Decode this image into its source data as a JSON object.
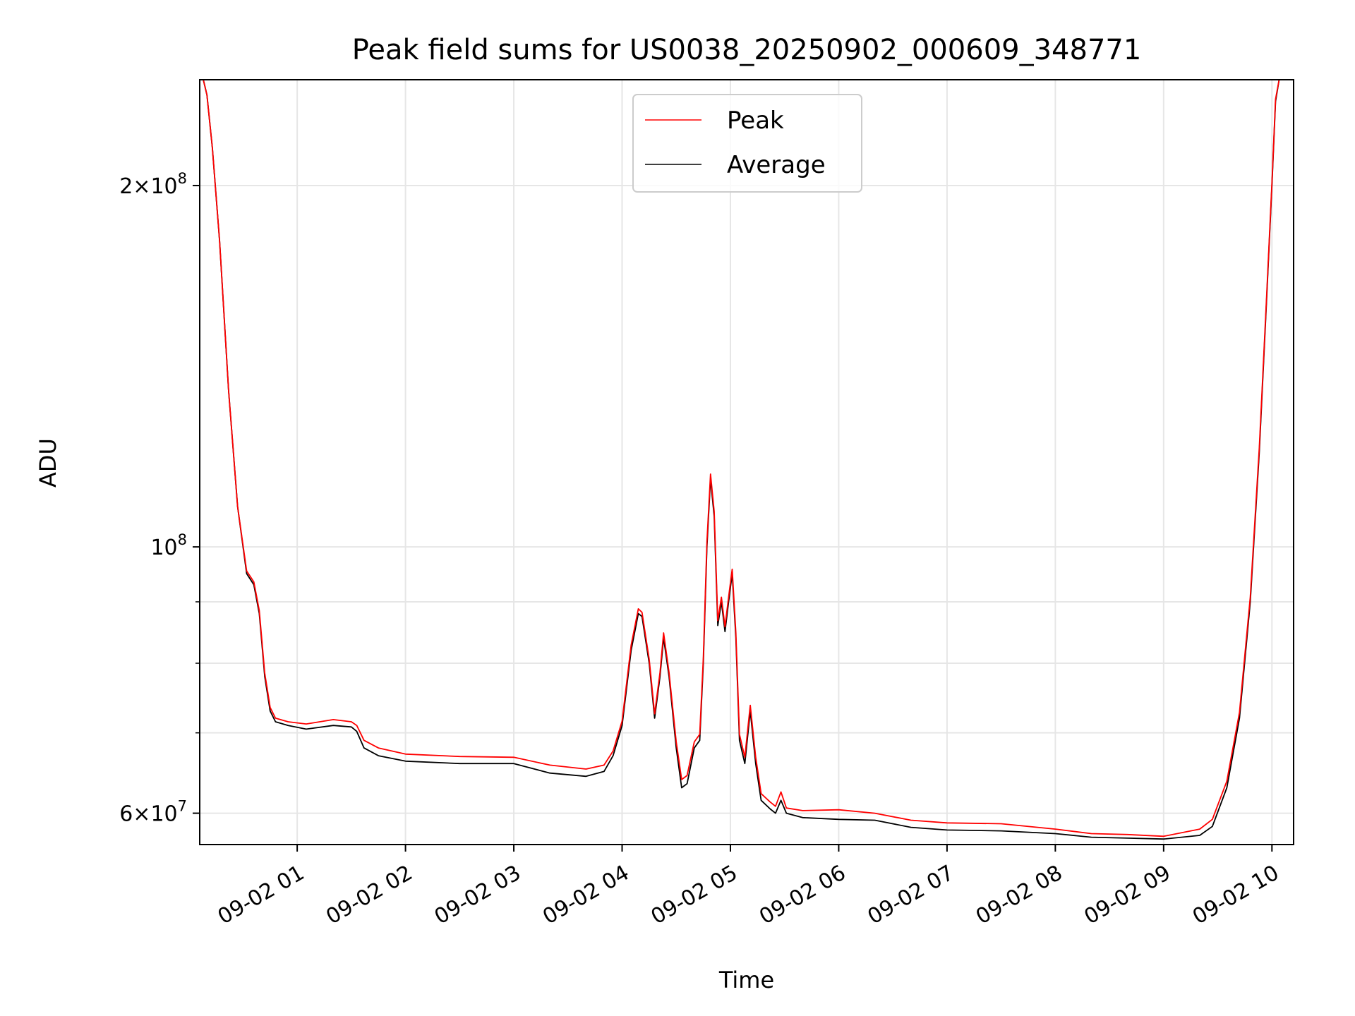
{
  "chart_data": {
    "type": "line",
    "title": "Peak field sums for US0038_20250902_000609_348771",
    "xlabel": "Time",
    "ylabel": "ADU",
    "y_scale": "log",
    "ylim": [
      56500000,
      245000000
    ],
    "xlim": [
      "2025-09-02T00:06",
      "2025-09-02T10:12"
    ],
    "grid": true,
    "legend": {
      "placement": "upper center",
      "entries": [
        "Peak",
        "Average"
      ]
    },
    "x_ticks": [
      {
        "t": "2025-09-02T01:00",
        "label": "09-02 01"
      },
      {
        "t": "2025-09-02T02:00",
        "label": "09-02 02"
      },
      {
        "t": "2025-09-02T03:00",
        "label": "09-02 03"
      },
      {
        "t": "2025-09-02T04:00",
        "label": "09-02 04"
      },
      {
        "t": "2025-09-02T05:00",
        "label": "09-02 05"
      },
      {
        "t": "2025-09-02T06:00",
        "label": "09-02 06"
      },
      {
        "t": "2025-09-02T07:00",
        "label": "09-02 07"
      },
      {
        "t": "2025-09-02T08:00",
        "label": "09-02 08"
      },
      {
        "t": "2025-09-02T09:00",
        "label": "09-02 09"
      },
      {
        "t": "2025-09-02T10:00",
        "label": "09-02 10"
      }
    ],
    "y_ticks": [
      {
        "value": 200000000,
        "mant": "2",
        "exp": "8"
      },
      {
        "value": 100000000,
        "mant": "",
        "exp": "8"
      },
      {
        "value": 60000000,
        "mant": "6",
        "exp": "7"
      }
    ],
    "y_minor_ticks": [
      70000000,
      80000000,
      90000000
    ],
    "series": [
      {
        "name": "Average",
        "color": "#000000",
        "points": [
          [
            "2025-09-02T00:08",
            245000000
          ],
          [
            "2025-09-02T00:10",
            238000000
          ],
          [
            "2025-09-02T00:13",
            215000000
          ],
          [
            "2025-09-02T00:17",
            180000000
          ],
          [
            "2025-09-02T00:22",
            135000000
          ],
          [
            "2025-09-02T00:27",
            108000000
          ],
          [
            "2025-09-02T00:32",
            95000000
          ],
          [
            "2025-09-02T00:36",
            93000000
          ],
          [
            "2025-09-02T00:39",
            88000000
          ],
          [
            "2025-09-02T00:42",
            78000000
          ],
          [
            "2025-09-02T00:45",
            73000000
          ],
          [
            "2025-09-02T00:48",
            71500000
          ],
          [
            "2025-09-02T00:55",
            71000000
          ],
          [
            "2025-09-02T01:05",
            70500000
          ],
          [
            "2025-09-02T01:20",
            71000000
          ],
          [
            "2025-09-02T01:30",
            70800000
          ],
          [
            "2025-09-02T01:33",
            70200000
          ],
          [
            "2025-09-02T01:37",
            68000000
          ],
          [
            "2025-09-02T01:45",
            67000000
          ],
          [
            "2025-09-02T02:00",
            66300000
          ],
          [
            "2025-09-02T02:30",
            66000000
          ],
          [
            "2025-09-02T03:00",
            66000000
          ],
          [
            "2025-09-02T03:20",
            64800000
          ],
          [
            "2025-09-02T03:40",
            64400000
          ],
          [
            "2025-09-02T03:50",
            65000000
          ],
          [
            "2025-09-02T03:55",
            67000000
          ],
          [
            "2025-09-02T04:00",
            71000000
          ],
          [
            "2025-09-02T04:05",
            82000000
          ],
          [
            "2025-09-02T04:09",
            88000000
          ],
          [
            "2025-09-02T04:11",
            87500000
          ],
          [
            "2025-09-02T04:15",
            80000000
          ],
          [
            "2025-09-02T04:18",
            72000000
          ],
          [
            "2025-09-02T04:21",
            78000000
          ],
          [
            "2025-09-02T04:23",
            84000000
          ],
          [
            "2025-09-02T04:26",
            78000000
          ],
          [
            "2025-09-02T04:30",
            68000000
          ],
          [
            "2025-09-02T04:33",
            63000000
          ],
          [
            "2025-09-02T04:36",
            63500000
          ],
          [
            "2025-09-02T04:40",
            68000000
          ],
          [
            "2025-09-02T04:43",
            69000000
          ],
          [
            "2025-09-02T04:45",
            80000000
          ],
          [
            "2025-09-02T04:47",
            100000000
          ],
          [
            "2025-09-02T04:49",
            114000000
          ],
          [
            "2025-09-02T04:51",
            106000000
          ],
          [
            "2025-09-02T04:53",
            86000000
          ],
          [
            "2025-09-02T04:55",
            90000000
          ],
          [
            "2025-09-02T04:57",
            85000000
          ],
          [
            "2025-09-02T04:59",
            90000000
          ],
          [
            "2025-09-02T05:01",
            95000000
          ],
          [
            "2025-09-02T05:03",
            84000000
          ],
          [
            "2025-09-02T05:05",
            69000000
          ],
          [
            "2025-09-02T05:08",
            66000000
          ],
          [
            "2025-09-02T05:11",
            73000000
          ],
          [
            "2025-09-02T05:14",
            66000000
          ],
          [
            "2025-09-02T05:17",
            61500000
          ],
          [
            "2025-09-02T05:22",
            60500000
          ],
          [
            "2025-09-02T05:25",
            60000000
          ],
          [
            "2025-09-02T05:28",
            61500000
          ],
          [
            "2025-09-02T05:31",
            60000000
          ],
          [
            "2025-09-02T05:40",
            59500000
          ],
          [
            "2025-09-02T06:00",
            59300000
          ],
          [
            "2025-09-02T06:20",
            59200000
          ],
          [
            "2025-09-02T06:40",
            58400000
          ],
          [
            "2025-09-02T07:00",
            58100000
          ],
          [
            "2025-09-02T07:30",
            58000000
          ],
          [
            "2025-09-02T08:00",
            57700000
          ],
          [
            "2025-09-02T08:20",
            57300000
          ],
          [
            "2025-09-02T08:40",
            57200000
          ],
          [
            "2025-09-02T09:00",
            57100000
          ],
          [
            "2025-09-02T09:20",
            57500000
          ],
          [
            "2025-09-02T09:27",
            58500000
          ],
          [
            "2025-09-02T09:35",
            63000000
          ],
          [
            "2025-09-02T09:42",
            72000000
          ],
          [
            "2025-09-02T09:48",
            90000000
          ],
          [
            "2025-09-02T09:53",
            120000000
          ],
          [
            "2025-09-02T09:57",
            160000000
          ],
          [
            "2025-09-02T10:00",
            200000000
          ],
          [
            "2025-09-02T10:02",
            235000000
          ],
          [
            "2025-09-02T10:04",
            245000000
          ]
        ]
      },
      {
        "name": "Peak",
        "color": "#ff0000",
        "points": [
          [
            "2025-09-02T00:08",
            245000000
          ],
          [
            "2025-09-02T00:10",
            238000000
          ],
          [
            "2025-09-02T00:13",
            215000000
          ],
          [
            "2025-09-02T00:17",
            180000000
          ],
          [
            "2025-09-02T00:22",
            135000000
          ],
          [
            "2025-09-02T00:27",
            108000000
          ],
          [
            "2025-09-02T00:32",
            95500000
          ],
          [
            "2025-09-02T00:36",
            93500000
          ],
          [
            "2025-09-02T00:39",
            88500000
          ],
          [
            "2025-09-02T00:42",
            78500000
          ],
          [
            "2025-09-02T00:45",
            73500000
          ],
          [
            "2025-09-02T00:48",
            72000000
          ],
          [
            "2025-09-02T00:55",
            71500000
          ],
          [
            "2025-09-02T01:05",
            71200000
          ],
          [
            "2025-09-02T01:20",
            71800000
          ],
          [
            "2025-09-02T01:30",
            71500000
          ],
          [
            "2025-09-02T01:33",
            71000000
          ],
          [
            "2025-09-02T01:37",
            69000000
          ],
          [
            "2025-09-02T01:45",
            68000000
          ],
          [
            "2025-09-02T02:00",
            67200000
          ],
          [
            "2025-09-02T02:30",
            66900000
          ],
          [
            "2025-09-02T03:00",
            66800000
          ],
          [
            "2025-09-02T03:20",
            65800000
          ],
          [
            "2025-09-02T03:40",
            65300000
          ],
          [
            "2025-09-02T03:50",
            65800000
          ],
          [
            "2025-09-02T03:55",
            67600000
          ],
          [
            "2025-09-02T04:00",
            71600000
          ],
          [
            "2025-09-02T04:05",
            82800000
          ],
          [
            "2025-09-02T04:09",
            88800000
          ],
          [
            "2025-09-02T04:11",
            88200000
          ],
          [
            "2025-09-02T04:15",
            80600000
          ],
          [
            "2025-09-02T04:18",
            72600000
          ],
          [
            "2025-09-02T04:21",
            78600000
          ],
          [
            "2025-09-02T04:23",
            84800000
          ],
          [
            "2025-09-02T04:26",
            78600000
          ],
          [
            "2025-09-02T04:30",
            68800000
          ],
          [
            "2025-09-02T04:33",
            64000000
          ],
          [
            "2025-09-02T04:36",
            64500000
          ],
          [
            "2025-09-02T04:40",
            68800000
          ],
          [
            "2025-09-02T04:43",
            69800000
          ],
          [
            "2025-09-02T04:45",
            80800000
          ],
          [
            "2025-09-02T04:47",
            101000000
          ],
          [
            "2025-09-02T04:49",
            115000000
          ],
          [
            "2025-09-02T04:51",
            107000000
          ],
          [
            "2025-09-02T04:53",
            86800000
          ],
          [
            "2025-09-02T04:55",
            90800000
          ],
          [
            "2025-09-02T04:57",
            85800000
          ],
          [
            "2025-09-02T04:59",
            90800000
          ],
          [
            "2025-09-02T05:01",
            95800000
          ],
          [
            "2025-09-02T05:03",
            84800000
          ],
          [
            "2025-09-02T05:05",
            69800000
          ],
          [
            "2025-09-02T05:08",
            66800000
          ],
          [
            "2025-09-02T05:11",
            73800000
          ],
          [
            "2025-09-02T05:14",
            66800000
          ],
          [
            "2025-09-02T05:17",
            62300000
          ],
          [
            "2025-09-02T05:22",
            61300000
          ],
          [
            "2025-09-02T05:25",
            60800000
          ],
          [
            "2025-09-02T05:28",
            62500000
          ],
          [
            "2025-09-02T05:31",
            60600000
          ],
          [
            "2025-09-02T05:40",
            60300000
          ],
          [
            "2025-09-02T06:00",
            60400000
          ],
          [
            "2025-09-02T06:20",
            60000000
          ],
          [
            "2025-09-02T06:40",
            59200000
          ],
          [
            "2025-09-02T07:00",
            58900000
          ],
          [
            "2025-09-02T07:30",
            58800000
          ],
          [
            "2025-09-02T08:00",
            58200000
          ],
          [
            "2025-09-02T08:20",
            57700000
          ],
          [
            "2025-09-02T08:40",
            57600000
          ],
          [
            "2025-09-02T09:00",
            57400000
          ],
          [
            "2025-09-02T09:20",
            58200000
          ],
          [
            "2025-09-02T09:27",
            59300000
          ],
          [
            "2025-09-02T09:35",
            63800000
          ],
          [
            "2025-09-02T09:42",
            72800000
          ],
          [
            "2025-09-02T09:48",
            90800000
          ],
          [
            "2025-09-02T09:53",
            121000000
          ],
          [
            "2025-09-02T09:57",
            161000000
          ],
          [
            "2025-09-02T10:00",
            201000000
          ],
          [
            "2025-09-02T10:02",
            236000000
          ],
          [
            "2025-09-02T10:04",
            245000000
          ]
        ]
      }
    ]
  }
}
